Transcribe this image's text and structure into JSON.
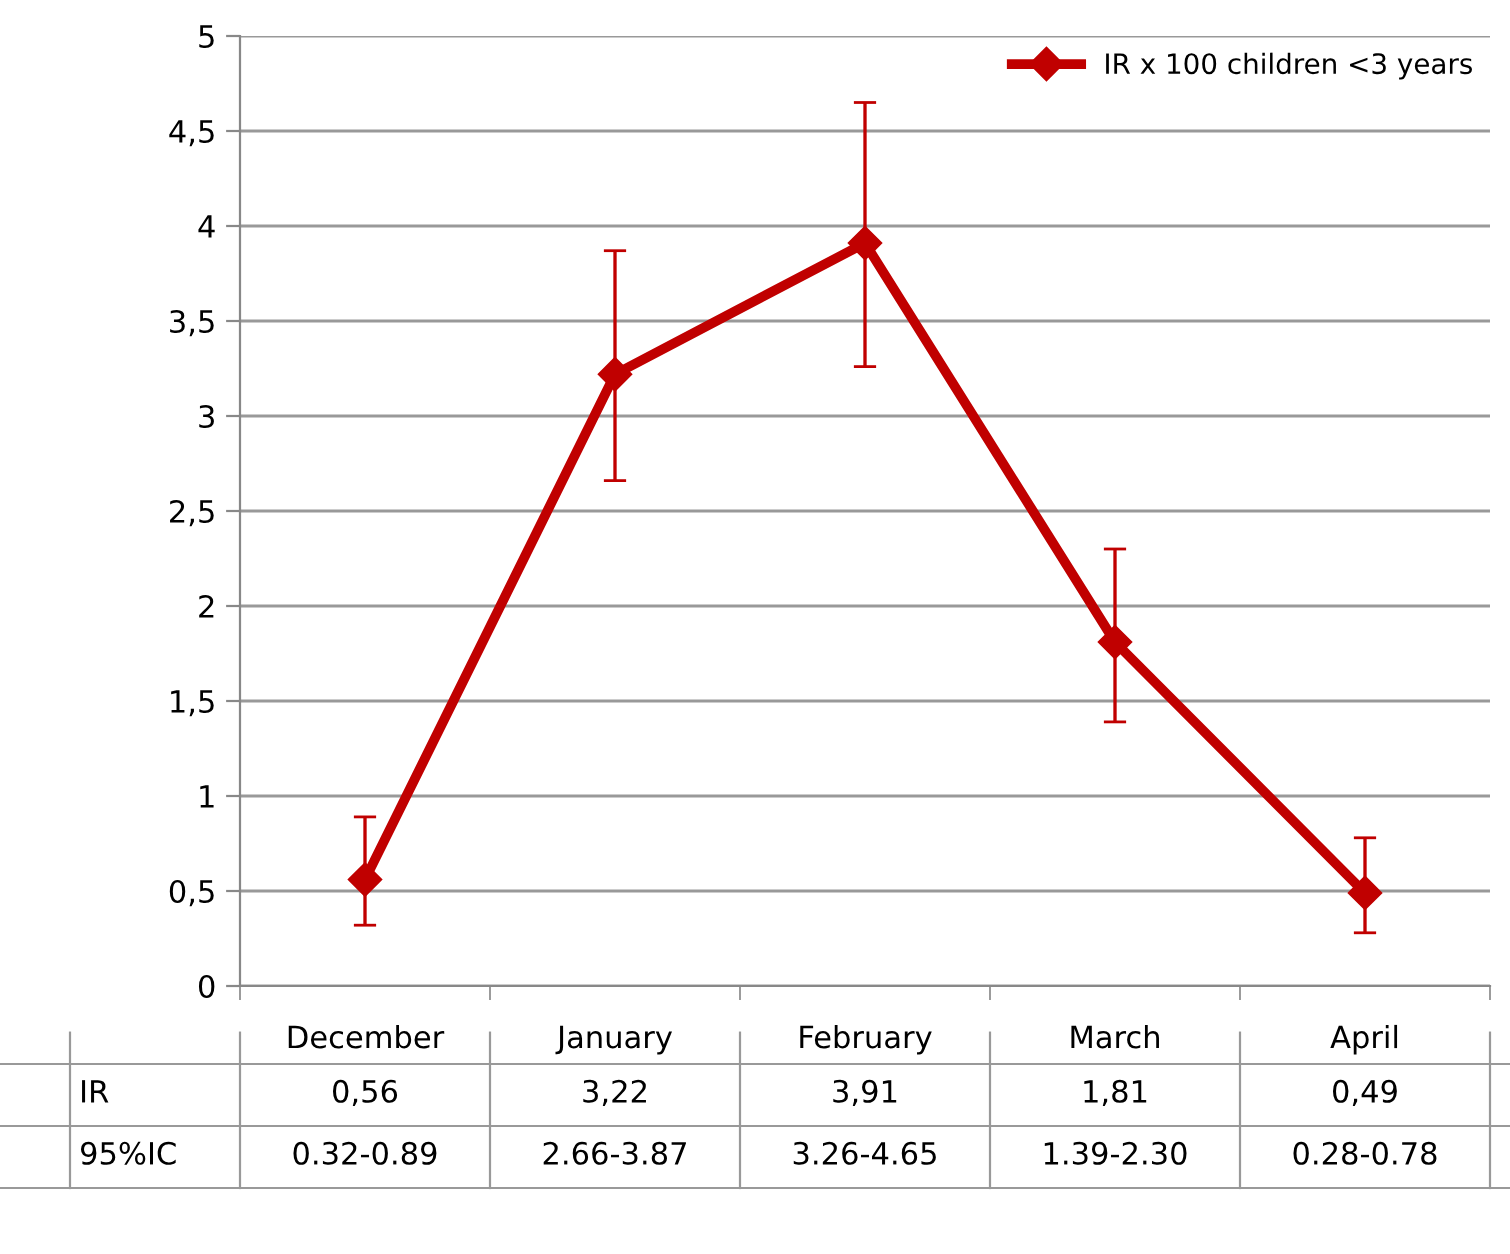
{
  "chart_data": {
    "type": "line",
    "categories": [
      "December",
      "January",
      "February",
      "March",
      "April"
    ],
    "series": [
      {
        "name": "IR x 100 children <3 years",
        "color": "#c00000",
        "values": [
          0.56,
          3.22,
          3.91,
          1.81,
          0.49
        ],
        "errors": [
          [
            0.32,
            0.89
          ],
          [
            2.66,
            3.87
          ],
          [
            3.26,
            4.65
          ],
          [
            1.39,
            2.3
          ],
          [
            0.28,
            0.78
          ]
        ],
        "value_labels": [
          "0,56",
          "3,22",
          "3,91",
          "1,81",
          "0,49"
        ]
      }
    ],
    "ylim": [
      0,
      5
    ],
    "yticks": [
      0,
      {
        "value": 0.5,
        "label": "0,5"
      },
      1,
      {
        "value": 1.5,
        "label": "1,5"
      },
      2,
      {
        "value": 2.5,
        "label": "2,5"
      },
      3,
      {
        "value": 3.5,
        "label": "3,5"
      },
      4,
      {
        "value": 4.5,
        "label": "4,5"
      },
      5
    ],
    "grid": "y",
    "legend": "top right",
    "marker": "diamond",
    "line_style": "solid",
    "annotations": [
      "IR",
      "95%IC",
      "0.32-0.89",
      "2.66-3.87",
      "3.26-4.65",
      "1.39-2.30",
      "0.28-0.78"
    ]
  }
}
